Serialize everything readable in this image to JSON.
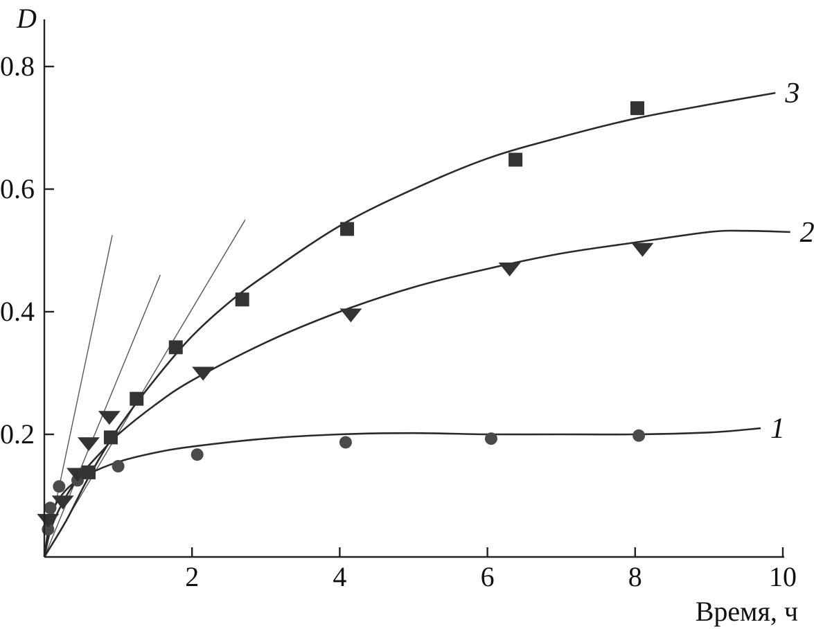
{
  "chart_data": {
    "type": "scatter",
    "xlabel": "Время, ч",
    "ylabel": "D",
    "xlim": [
      0,
      10
    ],
    "ylim": [
      0,
      0.87
    ],
    "x_ticks": [
      2,
      4,
      6,
      8,
      10
    ],
    "x_tick_labels": [
      "2",
      "4",
      "6",
      "8",
      "10"
    ],
    "y_ticks": [
      0.2,
      0.4,
      0.6,
      0.8
    ],
    "y_tick_labels": [
      "0.2",
      "0.4",
      "0.6",
      "0.8"
    ],
    "grid": false,
    "series": [
      {
        "label": "1",
        "marker": "circle",
        "color": "#4a4a4a",
        "points": [
          [
            0.05,
            0.045
          ],
          [
            0.08,
            0.08
          ],
          [
            0.2,
            0.115
          ],
          [
            0.45,
            0.125
          ],
          [
            1.0,
            0.148
          ],
          [
            2.07,
            0.167
          ],
          [
            4.08,
            0.187
          ],
          [
            6.05,
            0.193
          ],
          [
            8.05,
            0.198
          ]
        ],
        "fit": [
          [
            0,
            0
          ],
          [
            0.1,
            0.07
          ],
          [
            0.3,
            0.11
          ],
          [
            0.6,
            0.135
          ],
          [
            1.0,
            0.155
          ],
          [
            1.5,
            0.17
          ],
          [
            2.0,
            0.18
          ],
          [
            3.0,
            0.193
          ],
          [
            4.0,
            0.2
          ],
          [
            5.0,
            0.202
          ],
          [
            6.0,
            0.2
          ],
          [
            7.0,
            0.2
          ],
          [
            8.0,
            0.2
          ],
          [
            9.0,
            0.203
          ],
          [
            9.7,
            0.21
          ]
        ]
      },
      {
        "label": "2",
        "marker": "triangle-down",
        "color": "#333333",
        "points": [
          [
            0.05,
            0.06
          ],
          [
            0.25,
            0.09
          ],
          [
            0.45,
            0.135
          ],
          [
            0.6,
            0.185
          ],
          [
            0.88,
            0.228
          ],
          [
            2.15,
            0.3
          ],
          [
            4.15,
            0.395
          ],
          [
            6.3,
            0.47
          ],
          [
            8.1,
            0.502
          ]
        ],
        "fit": [
          [
            0,
            0
          ],
          [
            0.1,
            0.05
          ],
          [
            0.3,
            0.1
          ],
          [
            0.5,
            0.135
          ],
          [
            0.8,
            0.175
          ],
          [
            1.0,
            0.2
          ],
          [
            1.5,
            0.248
          ],
          [
            2.0,
            0.288
          ],
          [
            3.0,
            0.35
          ],
          [
            4.0,
            0.4
          ],
          [
            5.0,
            0.44
          ],
          [
            6.0,
            0.47
          ],
          [
            7.0,
            0.495
          ],
          [
            8.0,
            0.513
          ],
          [
            9.0,
            0.53
          ],
          [
            9.5,
            0.532
          ],
          [
            10.1,
            0.53
          ]
        ]
      },
      {
        "label": "3",
        "marker": "square",
        "color": "#333333",
        "points": [
          [
            0.6,
            0.138
          ],
          [
            0.9,
            0.195
          ],
          [
            1.25,
            0.258
          ],
          [
            1.78,
            0.342
          ],
          [
            2.68,
            0.42
          ],
          [
            4.1,
            0.535
          ],
          [
            6.38,
            0.648
          ],
          [
            8.03,
            0.732
          ]
        ],
        "fit": [
          [
            0,
            0
          ],
          [
            0.3,
            0.06
          ],
          [
            0.6,
            0.13
          ],
          [
            1.0,
            0.21
          ],
          [
            1.5,
            0.29
          ],
          [
            2.0,
            0.36
          ],
          [
            2.5,
            0.415
          ],
          [
            3.0,
            0.46
          ],
          [
            4.0,
            0.54
          ],
          [
            5.0,
            0.6
          ],
          [
            6.0,
            0.65
          ],
          [
            7.0,
            0.685
          ],
          [
            8.0,
            0.715
          ],
          [
            9.0,
            0.738
          ],
          [
            9.9,
            0.757
          ]
        ]
      }
    ],
    "tangent_lines": [
      {
        "from": [
          0,
          0
        ],
        "to": [
          0.92,
          0.525
        ]
      },
      {
        "from": [
          0,
          0
        ],
        "to": [
          1.57,
          0.46
        ]
      },
      {
        "from": [
          0,
          0
        ],
        "to": [
          2.72,
          0.55
        ]
      }
    ]
  }
}
